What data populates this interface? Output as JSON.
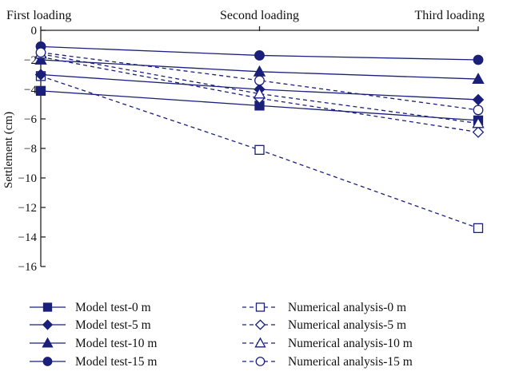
{
  "chart_data": {
    "type": "line",
    "categories": [
      "First loading",
      "Second loading",
      "Third loading"
    ],
    "ylabel": "Settlement (cm)",
    "ylim": [
      -16,
      0
    ],
    "yticks": [
      0,
      -2,
      -4,
      -6,
      -8,
      -10,
      -12,
      -14,
      -16
    ],
    "ytick_labels": [
      "0",
      "−2",
      "−4",
      "−6",
      "−8",
      "−10",
      "−12",
      "−14",
      "−16"
    ],
    "grid": false,
    "legend_position": "bottom",
    "series_color": "#1a1f7a",
    "series": [
      {
        "name": "Model test-0 m",
        "marker": "square",
        "filled": true,
        "dashed": false,
        "values": [
          -4.1,
          -5.1,
          -6.1
        ]
      },
      {
        "name": "Numerical analysis-0 m",
        "marker": "square",
        "filled": false,
        "dashed": true,
        "values": [
          -3.1,
          -8.1,
          -13.4
        ]
      },
      {
        "name": "Model test-5 m",
        "marker": "diamond",
        "filled": true,
        "dashed": false,
        "values": [
          -3.0,
          -4.0,
          -4.7
        ]
      },
      {
        "name": "Numerical analysis-5 m",
        "marker": "diamond",
        "filled": false,
        "dashed": true,
        "values": [
          -1.8,
          -4.6,
          -6.9
        ]
      },
      {
        "name": "Model test-10 m",
        "marker": "triangle",
        "filled": true,
        "dashed": false,
        "values": [
          -2.0,
          -2.8,
          -3.3
        ]
      },
      {
        "name": "Numerical analysis-10 m",
        "marker": "triangle",
        "filled": false,
        "dashed": true,
        "values": [
          -1.6,
          -4.3,
          -6.3
        ]
      },
      {
        "name": "Model test-15 m",
        "marker": "circle",
        "filled": true,
        "dashed": false,
        "values": [
          -1.1,
          -1.7,
          -2.0
        ]
      },
      {
        "name": "Numerical analysis-15 m",
        "marker": "circle",
        "filled": false,
        "dashed": true,
        "values": [
          -1.5,
          -3.4,
          -5.4
        ]
      }
    ]
  }
}
